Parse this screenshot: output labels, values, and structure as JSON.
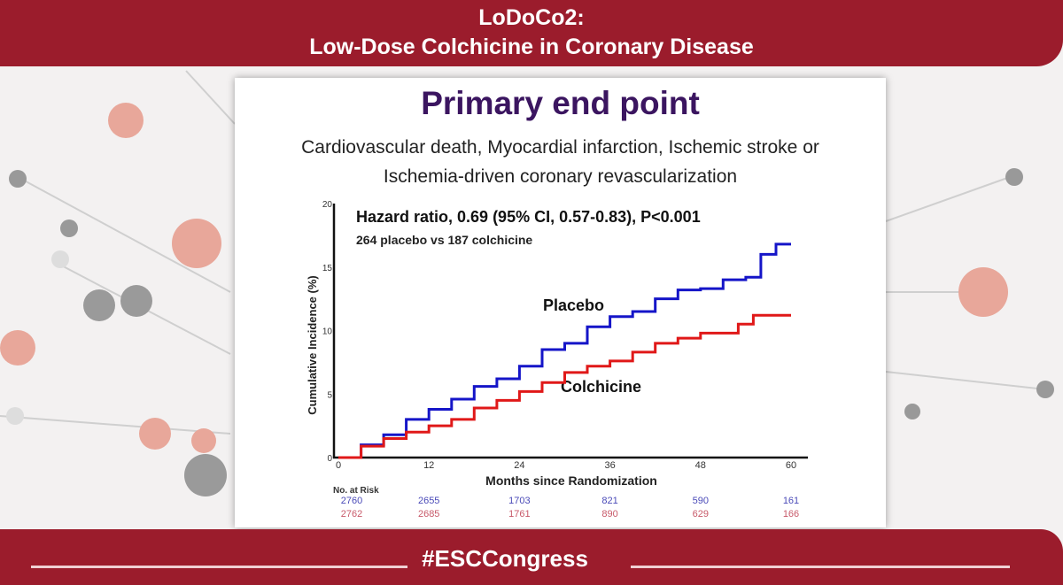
{
  "header": {
    "line1": "LoDoCo2:",
    "line2": "Low-Dose Colchicine in Coronary Disease"
  },
  "slide": {
    "title": "Primary end point",
    "subtitle_line1": "Cardiovascular death, Myocardial infarction, Ischemic stroke or",
    "subtitle_line2": "Ischemia-driven coronary revascularization"
  },
  "footer": {
    "hashtag": "#ESCCongress"
  },
  "colors": {
    "brand": "#9b1c2c",
    "title": "#3b1560",
    "placebo": "#1515c8",
    "colchicine": "#e01818"
  },
  "chart_data": {
    "type": "line",
    "annotation1": "Hazard ratio, 0.69 (95% CI, 0.57-0.83), P<0.001",
    "annotation2": "264 placebo vs 187 colchicine",
    "xlabel": "Months since Randomization",
    "ylabel": "Cumulative Incidence (%)",
    "xlim": [
      0,
      60
    ],
    "ylim": [
      0,
      20
    ],
    "xticks": [
      "0",
      "12",
      "24",
      "36",
      "48",
      "60"
    ],
    "yticks": [
      "0",
      "5",
      "10",
      "15",
      "20"
    ],
    "grid": false,
    "series": [
      {
        "name": "Placebo",
        "x": [
          0,
          3,
          6,
          9,
          12,
          15,
          18,
          21,
          24,
          27,
          30,
          33,
          36,
          39,
          42,
          45,
          48,
          51,
          54,
          56,
          58,
          60
        ],
        "y": [
          0,
          1,
          1.8,
          3,
          3.8,
          4.6,
          5.6,
          6.2,
          7.2,
          8.5,
          9,
          10.3,
          11.1,
          11.5,
          12.5,
          13.2,
          13.3,
          14,
          14.2,
          16,
          16.8,
          16.8
        ]
      },
      {
        "name": "Colchicine",
        "x": [
          0,
          3,
          6,
          9,
          12,
          15,
          18,
          21,
          24,
          27,
          30,
          33,
          36,
          39,
          42,
          45,
          48,
          51,
          53,
          55,
          60
        ],
        "y": [
          0,
          0.9,
          1.5,
          2,
          2.5,
          3,
          3.9,
          4.5,
          5.2,
          5.9,
          6.7,
          7.2,
          7.6,
          8.3,
          9,
          9.4,
          9.8,
          9.8,
          10.5,
          11.2,
          11.2
        ]
      }
    ],
    "risk_table": {
      "label": "No. at Risk",
      "placebo": [
        "2760",
        "2655",
        "1703",
        "821",
        "590",
        "161"
      ],
      "colchicine": [
        "2762",
        "2685",
        "1761",
        "890",
        "629",
        "166"
      ]
    }
  }
}
